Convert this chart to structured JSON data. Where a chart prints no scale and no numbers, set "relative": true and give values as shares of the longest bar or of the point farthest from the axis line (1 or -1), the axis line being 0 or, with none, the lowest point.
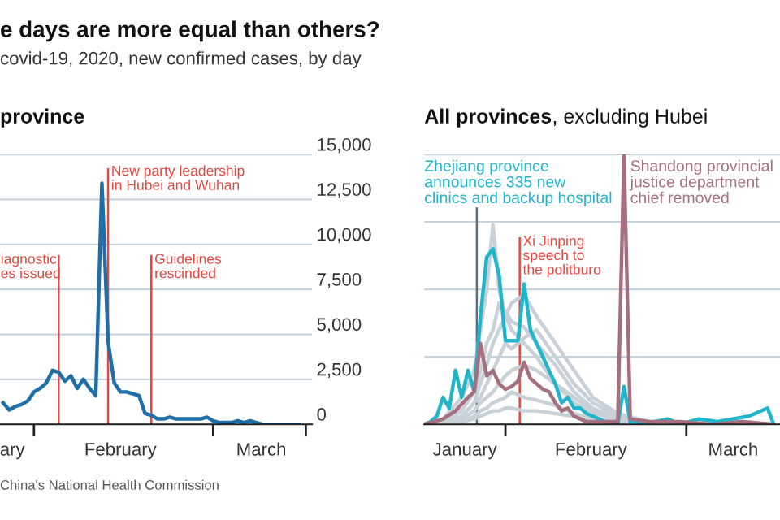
{
  "chart_data": [
    {
      "type": "line",
      "title": "province",
      "annotations": [
        "e days are more equal than others?",
        "covid-19, 2020, new confirmed cases, by day",
        "China's National Health Commission",
        {
          "text": "iagnostic\nes issued",
          "x": "2020-02-05",
          "y": 9500
        },
        {
          "text": "New party leadership\nin Hubei and Wuhan",
          "x": "2020-02-13",
          "y": 14400
        },
        {
          "text": "Guidelines\nrescinded",
          "x": "2020-02-20",
          "y": 9500
        }
      ],
      "x": [
        "2020-01-27",
        "2020-01-28",
        "2020-01-29",
        "2020-01-30",
        "2020-01-31",
        "2020-02-01",
        "2020-02-02",
        "2020-02-03",
        "2020-02-04",
        "2020-02-05",
        "2020-02-06",
        "2020-02-07",
        "2020-02-08",
        "2020-02-09",
        "2020-02-10",
        "2020-02-11",
        "2020-02-12",
        "2020-02-13",
        "2020-02-14",
        "2020-02-15",
        "2020-02-16",
        "2020-02-17",
        "2020-02-18",
        "2020-02-19",
        "2020-02-20",
        "2020-02-21",
        "2020-02-22",
        "2020-02-23",
        "2020-02-24",
        "2020-02-25",
        "2020-02-26",
        "2020-02-27",
        "2020-02-28",
        "2020-02-29",
        "2020-03-01",
        "2020-03-02",
        "2020-03-03",
        "2020-03-04",
        "2020-03-05",
        "2020-03-06",
        "2020-03-07",
        "2020-03-08",
        "2020-03-09",
        "2020-03-10",
        "2020-03-11",
        "2020-03-12",
        "2020-03-13",
        "2020-03-14",
        "2020-03-15"
      ],
      "series": [
        {
          "color": "#1f6ea8",
          "values": [
            1200,
            800,
            1000,
            1100,
            1300,
            1800,
            2000,
            2300,
            3000,
            2900,
            2400,
            2700,
            2000,
            2500,
            2000,
            1600,
            13400,
            4600,
            2300,
            1800,
            1800,
            1700,
            1600,
            600,
            500,
            300,
            300,
            400,
            300,
            300,
            300,
            300,
            300,
            400,
            200,
            100,
            100,
            100,
            200,
            100,
            200,
            100,
            0,
            0,
            0,
            0,
            0,
            0,
            0
          ]
        }
      ],
      "xlim": [
        "2020-01-26T12:00",
        "2020-03-17"
      ],
      "ylim": [
        0,
        15000
      ],
      "xticks": [
        {
          "value": "2020-01-28T12:00",
          "label": "ary"
        },
        {
          "value": "2020-02-01",
          "label": null
        },
        {
          "value": "2020-02-15",
          "label": "February"
        },
        {
          "value": "2020-03-01",
          "label": null
        },
        {
          "value": "2020-03-08T19:00",
          "label": "March"
        },
        {
          "value": "2020-03-16",
          "label": null
        }
      ],
      "yticks": [
        0,
        {
          "value": 2500,
          "label": "2,500"
        },
        {
          "value": 5000,
          "label": "5,000"
        },
        {
          "value": 7500,
          "label": "7,500"
        },
        {
          "value": 10000,
          "label": "10,000"
        },
        {
          "value": 12500,
          "label": "12,500"
        },
        {
          "value": 15000,
          "label": "15,000"
        }
      ],
      "grid": "y",
      "ref_lines": [
        {
          "axis": "x",
          "value": "2020-02-05",
          "color": "#e3473f"
        },
        {
          "axis": "x",
          "value": "2020-02-13",
          "color": "#e3473f"
        },
        {
          "axis": "x",
          "value": "2020-02-20",
          "color": "#e3473f"
        }
      ]
    },
    {
      "type": "line",
      "title": "All provinces, excluding Hubei",
      "relative": true,
      "annotations": [
        "Zhejiang province\nannounces 335 new\nclinics and backup hospital",
        {
          "text": "Xi Jinping\nspeech to\nthe politburo",
          "x": "2020-02-03T07:00",
          "y": 0.7
        },
        {
          "text": "Shandong provincial\njustice department\nchief removed",
          "x": "2020-02-20",
          "y": 1
        }
      ],
      "x": [
        "2020-01-19",
        "2020-01-22",
        "2020-01-25",
        "2020-01-27",
        "2020-01-28",
        "2020-01-29",
        "2020-01-30",
        "2020-01-31",
        "2020-02-01",
        "2020-02-02",
        "2020-02-04",
        "2020-02-06",
        "2020-02-09",
        "2020-02-12",
        "2020-02-15",
        "2020-02-19",
        "2020-02-24",
        "2020-02-29",
        "2020-03-05",
        "2020-03-10",
        "2020-03-15"
      ],
      "series": [
        {
          "color": "#c8d1d8",
          "values": [
            0,
            0.02,
            0.1,
            0.2,
            0.35,
            0.5,
            0.74,
            0.5,
            0.4,
            0.35,
            0.3,
            0.25,
            0.15,
            0.08,
            0.04,
            0.02,
            0.01,
            0,
            0.01,
            0,
            0
          ]
        },
        {
          "color": "#c8d1d8",
          "values": [
            0,
            0.01,
            0.05,
            0.12,
            0.2,
            0.3,
            0.35,
            0.45,
            0.42,
            0.38,
            0.36,
            0.3,
            0.22,
            0.12,
            0.06,
            0.02,
            0.01,
            0,
            0,
            0,
            0
          ]
        },
        {
          "color": "#c8d1d8",
          "values": [
            0,
            0,
            0.03,
            0.08,
            0.1,
            0.15,
            0.2,
            0.25,
            0.3,
            0.28,
            0.32,
            0.35,
            0.25,
            0.15,
            0.08,
            0.03,
            0,
            0,
            0,
            0.01,
            0
          ]
        },
        {
          "color": "#c8d1d8",
          "values": [
            0,
            0.01,
            0.02,
            0.05,
            0.08,
            0.1,
            0.12,
            0.15,
            0.18,
            0.2,
            0.22,
            0.2,
            0.15,
            0.1,
            0.05,
            0.02,
            0.01,
            0,
            0,
            0,
            0
          ]
        },
        {
          "color": "#c8d1d8",
          "values": [
            0,
            0,
            0.01,
            0.03,
            0.05,
            0.06,
            0.08,
            0.09,
            0.1,
            0.12,
            0.1,
            0.09,
            0.07,
            0.04,
            0.02,
            0.01,
            0,
            0,
            0,
            0,
            0
          ]
        },
        {
          "color": "#c8d1d8",
          "values": [
            0,
            0,
            0.01,
            0.02,
            0.03,
            0.04,
            0.05,
            0.05,
            0.06,
            0.06,
            0.05,
            0.05,
            0.04,
            0.03,
            0.02,
            0.01,
            0,
            0,
            0,
            0,
            0
          ]
        },
        {
          "color": "#c8d1d8",
          "values": [
            0,
            0.01,
            0.03,
            0.08,
            0.15,
            0.22,
            0.3,
            0.35,
            0.4,
            0.45,
            0.48,
            0.4,
            0.3,
            0.2,
            0.1,
            0.04,
            0.01,
            0,
            0,
            0,
            0
          ]
        },
        {
          "color": "#21b5c9",
          "x": [
            "2020-01-19",
            "2020-01-20",
            "2020-01-21",
            "2020-01-22",
            "2020-01-23",
            "2020-01-24",
            "2020-01-25",
            "2020-01-26",
            "2020-01-27",
            "2020-01-28",
            "2020-01-29",
            "2020-01-30",
            "2020-01-31",
            "2020-02-01",
            "2020-02-02",
            "2020-02-03",
            "2020-02-04",
            "2020-02-05",
            "2020-02-06",
            "2020-02-07",
            "2020-02-08",
            "2020-02-09",
            "2020-02-10",
            "2020-02-11",
            "2020-02-12",
            "2020-02-13",
            "2020-02-14",
            "2020-02-15",
            "2020-02-17",
            "2020-02-19",
            "2020-02-20",
            "2020-02-21",
            "2020-02-23",
            "2020-02-27",
            "2020-02-29",
            "2020-03-03",
            "2020-03-06",
            "2020-03-11",
            "2020-03-14",
            "2020-03-15"
          ],
          "values": [
            0,
            0.01,
            0.03,
            0.1,
            0.06,
            0.2,
            0.1,
            0.2,
            0.12,
            0.4,
            0.62,
            0.65,
            0.55,
            0.31,
            0.31,
            0.31,
            0.52,
            0.35,
            0.3,
            0.25,
            0.2,
            0.15,
            0.08,
            0.1,
            0.06,
            0.06,
            0.04,
            0.03,
            0.01,
            0,
            0.14,
            0.01,
            0,
            0.02,
            0,
            0.02,
            0.01,
            0.03,
            0.06,
            0
          ]
        },
        {
          "color": "#a4707f",
          "x": [
            "2020-01-19",
            "2020-01-22",
            "2020-01-24",
            "2020-01-26",
            "2020-01-27",
            "2020-01-28",
            "2020-01-29",
            "2020-01-30",
            "2020-01-31",
            "2020-02-01",
            "2020-02-02",
            "2020-02-03",
            "2020-02-04",
            "2020-02-05",
            "2020-02-06",
            "2020-02-07",
            "2020-02-08",
            "2020-02-09",
            "2020-02-10",
            "2020-02-11",
            "2020-02-12",
            "2020-02-13",
            "2020-02-14",
            "2020-02-16",
            "2020-02-19",
            "2020-02-20",
            "2020-02-21",
            "2020-02-24",
            "2020-02-29",
            "2020-03-05",
            "2020-03-10",
            "2020-03-15"
          ],
          "values": [
            0,
            0.02,
            0.05,
            0.1,
            0.12,
            0.3,
            0.18,
            0.2,
            0.15,
            0.13,
            0.14,
            0.16,
            0.23,
            0.17,
            0.15,
            0.13,
            0.12,
            0.08,
            0.05,
            0.06,
            0.03,
            0.02,
            0.01,
            0.01,
            0.01,
            1,
            0.02,
            0.01,
            0.01,
            0,
            0.01,
            0
          ]
        }
      ],
      "xlim": [
        "2020-01-19",
        "2020-03-16"
      ],
      "xticks": [
        {
          "value": "2020-01-25T12:00",
          "label": "January"
        },
        {
          "value": "2020-02-01",
          "label": null
        },
        {
          "value": "2020-02-14T17:00",
          "label": "February"
        },
        {
          "value": "2020-03-01",
          "label": null
        },
        {
          "value": "2020-03-08T12:00",
          "label": "March"
        }
      ],
      "grid": "y",
      "ref_lines": [
        {
          "axis": "x",
          "value": "2020-01-27T10:00",
          "color": "#5b6f7e"
        },
        {
          "axis": "x",
          "value": "2020-02-03T07:00",
          "color": "#e3473f"
        }
      ]
    }
  ]
}
